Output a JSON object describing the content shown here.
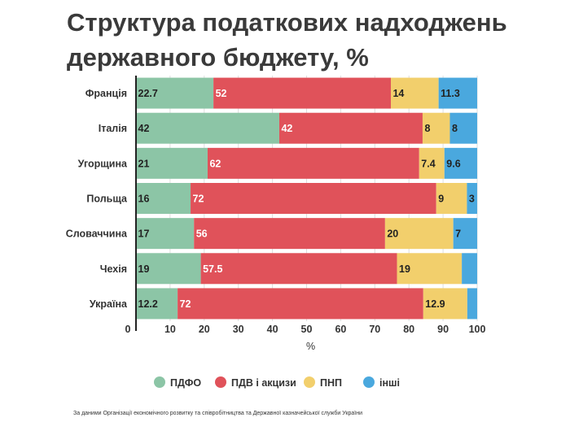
{
  "title": "Структура податкових надходжень державного бюджету, %",
  "source": "За даними Організації економічного розвитку та співробітництва та Державної казначейської служби України",
  "chart_data": {
    "type": "bar",
    "orientation": "horizontal",
    "stacked": true,
    "title": "Структура податкових надходжень державного бюджету, %",
    "xlabel": "%",
    "ylabel": "",
    "xlim": [
      0,
      100
    ],
    "xticks": [
      0,
      10,
      20,
      30,
      40,
      50,
      60,
      70,
      80,
      90,
      100
    ],
    "grid": true,
    "legend_position": "bottom",
    "categories": [
      "Франція",
      "Італія",
      "Угорщина",
      "Польща",
      "Словаччина",
      "Чехія",
      "Україна"
    ],
    "series": [
      {
        "name": "ПДФО",
        "color": "#8cc5a6",
        "values": [
          22.7,
          42,
          21,
          16,
          17,
          19,
          12.2
        ],
        "labels": [
          "22.7",
          "42",
          "21",
          "16",
          "17",
          "19",
          "12.2"
        ]
      },
      {
        "name": "ПДВ і акцизи",
        "color": "#e0525a",
        "values": [
          52,
          42,
          62,
          72,
          56,
          57.5,
          72
        ],
        "labels": [
          "52",
          "42",
          "62",
          "72",
          "56",
          "57.5",
          "72"
        ]
      },
      {
        "name": "ПНП",
        "color": "#f2cf6c",
        "values": [
          14,
          8,
          7.4,
          9,
          20,
          19,
          12.9
        ],
        "labels": [
          "14",
          "8",
          "7.4",
          "9",
          "20",
          "19",
          "12.9"
        ]
      },
      {
        "name": "інші",
        "color": "#4aa8de",
        "values": [
          11.3,
          8,
          9.6,
          3,
          7,
          4.5,
          2.9
        ],
        "labels": [
          "11.3",
          "8",
          "9.6",
          "3",
          "7",
          "",
          ""
        ]
      }
    ]
  }
}
